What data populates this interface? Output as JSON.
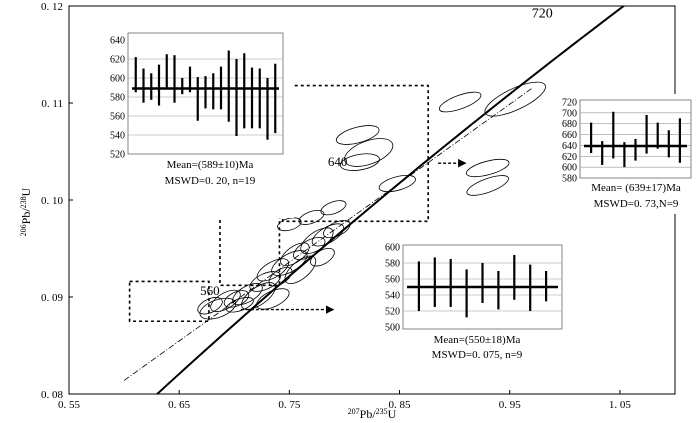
{
  "chart_data": [
    {
      "type": "scatter",
      "subtype": "concordia",
      "xlabel": {
        "sup": "207",
        "main": "Pb/",
        "sup2": "235",
        "main2": "U"
      },
      "ylabel": {
        "sup": "206",
        "main": "Pb/",
        "sup2": "238",
        "main2": "U"
      },
      "xlim": [
        0.55,
        1.1
      ],
      "ylim": [
        0.08,
        0.12
      ],
      "x_ticks": [
        0.55,
        0.65,
        0.75,
        0.85,
        0.95,
        1.05
      ],
      "x_tick_labels": [
        "0. 55",
        "0. 65",
        "0. 75",
        "0. 85",
        "0. 95",
        "1. 05"
      ],
      "y_ticks": [
        0.08,
        0.09,
        0.1,
        0.11,
        0.12
      ],
      "y_tick_labels": [
        "0. 08",
        "0. 09",
        "0. 10",
        "0. 11",
        "0. 12"
      ],
      "concordia_age_labels": [
        {
          "text": "720",
          "x": 0.97,
          "y": 0.1188
        },
        {
          "text": "640",
          "x": 0.785,
          "y": 0.1035
        },
        {
          "text": "560",
          "x": 0.669,
          "y": 0.0902
        }
      ],
      "discordia_line": {
        "x": [
          0.6,
          0.97
        ],
        "y": [
          0.0814,
          0.1115
        ]
      },
      "error_ellipses": [
        {
          "x": 0.678,
          "y": 0.0891,
          "rx": 0.012,
          "ry": 0.0007,
          "angle": -25
        },
        {
          "x": 0.685,
          "y": 0.0888,
          "rx": 0.017,
          "ry": 0.0009,
          "angle": -20
        },
        {
          "x": 0.692,
          "y": 0.0896,
          "rx": 0.015,
          "ry": 0.0008,
          "angle": -30
        },
        {
          "x": 0.702,
          "y": 0.0898,
          "rx": 0.012,
          "ry": 0.0007,
          "angle": -25
        },
        {
          "x": 0.712,
          "y": 0.0903,
          "rx": 0.015,
          "ry": 0.0008,
          "angle": -30
        },
        {
          "x": 0.722,
          "y": 0.0901,
          "rx": 0.018,
          "ry": 0.0009,
          "angle": -35
        },
        {
          "x": 0.735,
          "y": 0.0898,
          "rx": 0.016,
          "ry": 0.0008,
          "angle": -25
        },
        {
          "x": 0.705,
          "y": 0.0892,
          "rx": 0.013,
          "ry": 0.0006,
          "angle": -20
        },
        {
          "x": 0.728,
          "y": 0.0916,
          "rx": 0.015,
          "ry": 0.0008,
          "angle": -25
        },
        {
          "x": 0.735,
          "y": 0.0928,
          "rx": 0.016,
          "ry": 0.0008,
          "angle": -30
        },
        {
          "x": 0.742,
          "y": 0.0921,
          "rx": 0.012,
          "ry": 0.0007,
          "angle": -35
        },
        {
          "x": 0.75,
          "y": 0.0935,
          "rx": 0.018,
          "ry": 0.0009,
          "angle": -30
        },
        {
          "x": 0.755,
          "y": 0.0944,
          "rx": 0.015,
          "ry": 0.0008,
          "angle": -35
        },
        {
          "x": 0.76,
          "y": 0.0928,
          "rx": 0.017,
          "ry": 0.0009,
          "angle": -40
        },
        {
          "x": 0.768,
          "y": 0.095,
          "rx": 0.016,
          "ry": 0.0008,
          "angle": -30
        },
        {
          "x": 0.775,
          "y": 0.0958,
          "rx": 0.017,
          "ry": 0.0009,
          "angle": -35
        },
        {
          "x": 0.785,
          "y": 0.0964,
          "rx": 0.016,
          "ry": 0.0008,
          "angle": -30
        },
        {
          "x": 0.793,
          "y": 0.097,
          "rx": 0.013,
          "ry": 0.0007,
          "angle": -25
        },
        {
          "x": 0.78,
          "y": 0.0941,
          "rx": 0.012,
          "ry": 0.0007,
          "angle": -30
        },
        {
          "x": 0.77,
          "y": 0.0982,
          "rx": 0.012,
          "ry": 0.0006,
          "angle": -20
        },
        {
          "x": 0.75,
          "y": 0.0975,
          "rx": 0.011,
          "ry": 0.0006,
          "angle": -15
        },
        {
          "x": 0.79,
          "y": 0.0992,
          "rx": 0.012,
          "ry": 0.0006,
          "angle": -20
        },
        {
          "x": 0.812,
          "y": 0.1067,
          "rx": 0.02,
          "ry": 0.0008,
          "angle": -15
        },
        {
          "x": 0.822,
          "y": 0.1049,
          "rx": 0.023,
          "ry": 0.0012,
          "angle": -20
        },
        {
          "x": 0.814,
          "y": 0.1039,
          "rx": 0.018,
          "ry": 0.0008,
          "angle": -10
        },
        {
          "x": 0.848,
          "y": 0.1017,
          "rx": 0.017,
          "ry": 0.0007,
          "angle": -15
        },
        {
          "x": 0.905,
          "y": 0.1101,
          "rx": 0.02,
          "ry": 0.0007,
          "angle": -20
        },
        {
          "x": 0.955,
          "y": 0.1104,
          "rx": 0.03,
          "ry": 0.0011,
          "angle": -25
        },
        {
          "x": 0.93,
          "y": 0.1033,
          "rx": 0.02,
          "ry": 0.0007,
          "angle": -15
        },
        {
          "x": 0.93,
          "y": 0.1015,
          "rx": 0.02,
          "ry": 0.0007,
          "angle": -20
        }
      ],
      "selection_boxes": [
        {
          "x": [
            0.605,
            0.677
          ],
          "y": [
            0.0875,
            0.0916
          ]
        },
        {
          "x": [
            0.687,
            0.741
          ],
          "y": [
            0.0912,
            0.0991
          ]
        },
        {
          "x": [
            0.744,
            0.876
          ],
          "y": [
            0.0978,
            0.1118
          ]
        }
      ],
      "callout_arrows": [
        {
          "from": [
            0.681,
            0.0995
          ],
          "to": [
            0.681,
            0.1025
          ]
        },
        {
          "from": [
            0.885,
            0.1038
          ],
          "to": [
            0.91,
            0.1038
          ]
        },
        {
          "from": [
            0.706,
            0.0887
          ],
          "to": [
            0.79,
            0.0887
          ]
        }
      ]
    },
    {
      "type": "bar",
      "subtype": "weighted-mean-errorbars",
      "ylim": [
        520,
        640
      ],
      "y_ticks": [
        520,
        540,
        560,
        580,
        600,
        620,
        640
      ],
      "y_tick_labels": [
        "520",
        "540",
        "560",
        "580",
        "600",
        "620",
        "640"
      ],
      "mean": 589,
      "error_bars": [
        [
          585,
          622
        ],
        [
          574,
          610
        ],
        [
          577,
          605
        ],
        [
          571,
          614
        ],
        [
          590,
          625
        ],
        [
          574,
          624
        ],
        [
          583,
          600
        ],
        [
          585,
          612
        ],
        [
          555,
          601
        ],
        [
          568,
          602
        ],
        [
          567,
          605
        ],
        [
          567,
          612
        ],
        [
          554,
          629
        ],
        [
          539,
          620
        ],
        [
          547,
          626
        ],
        [
          547,
          611
        ],
        [
          547,
          610
        ],
        [
          535,
          600
        ],
        [
          542,
          615
        ]
      ],
      "stats": [
        "Mean=(589±10)Ma",
        "MSWD=0. 20, n=19"
      ]
    },
    {
      "type": "bar",
      "subtype": "weighted-mean-errorbars",
      "ylim": [
        580,
        720
      ],
      "y_ticks": [
        580,
        600,
        620,
        640,
        660,
        680,
        700,
        720
      ],
      "y_tick_labels": [
        "580",
        "600",
        "620",
        "640",
        "660",
        "680",
        "700",
        "720"
      ],
      "mean": 639,
      "error_bars": [
        [
          626,
          682
        ],
        [
          604,
          648
        ],
        [
          616,
          702
        ],
        [
          600,
          646
        ],
        [
          612,
          652
        ],
        [
          625,
          696
        ],
        [
          634,
          682
        ],
        [
          618,
          668
        ],
        [
          608,
          690
        ]
      ],
      "stats": [
        "Mean= (639±17)Ma",
        "MSWD=0. 73,N=9"
      ]
    },
    {
      "type": "bar",
      "subtype": "weighted-mean-errorbars",
      "ylim": [
        500,
        600
      ],
      "y_ticks": [
        500,
        520,
        540,
        560,
        580,
        600
      ],
      "y_tick_labels": [
        "500",
        "520",
        "540",
        "560",
        "580",
        "600"
      ],
      "mean": 550,
      "error_bars": [
        [
          520,
          582
        ],
        [
          525,
          587
        ],
        [
          525,
          585
        ],
        [
          512,
          572
        ],
        [
          530,
          580
        ],
        [
          522,
          570
        ],
        [
          534,
          590
        ],
        [
          520,
          578
        ],
        [
          532,
          570
        ]
      ],
      "stats": [
        "Mean=(550±18)Ma",
        "MSWD=0. 075, n=9"
      ]
    }
  ]
}
